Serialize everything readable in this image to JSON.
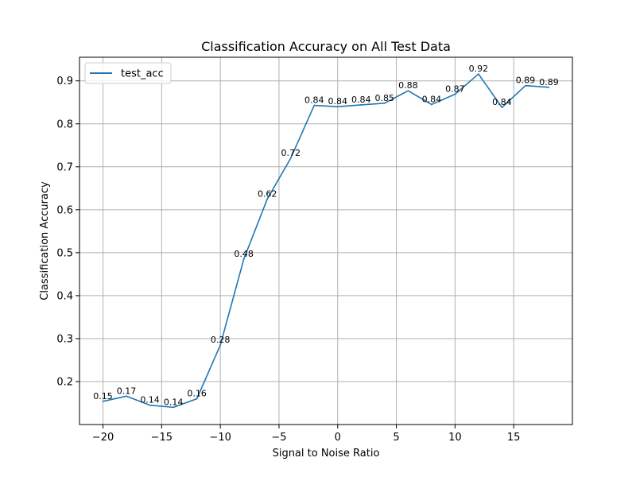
{
  "chart_data": {
    "type": "line",
    "title": "Classification Accuracy on All Test Data",
    "xlabel": "Signal to Noise Ratio",
    "ylabel": "Classification Accuracy",
    "xlim": [
      -22,
      20
    ],
    "ylim": [
      0.1,
      0.955
    ],
    "xticks": [
      -20,
      -15,
      -10,
      -5,
      0,
      5,
      10,
      15
    ],
    "xtick_labels": [
      "−20",
      "−15",
      "−10",
      "−5",
      "0",
      "5",
      "10",
      "15"
    ],
    "yticks": [
      0.2,
      0.3,
      0.4,
      0.5,
      0.6,
      0.7,
      0.8,
      0.9
    ],
    "ytick_labels": [
      "0.2",
      "0.3",
      "0.4",
      "0.5",
      "0.6",
      "0.7",
      "0.8",
      "0.9"
    ],
    "grid": true,
    "legend_position": "top-left",
    "series": [
      {
        "name": "test_acc",
        "color": "#1f77b4",
        "x": [
          -20,
          -18,
          -16,
          -14,
          -12,
          -10,
          -8,
          -6,
          -4,
          -2,
          0,
          2,
          4,
          6,
          8,
          10,
          12,
          14,
          16,
          18
        ],
        "y": [
          0.154,
          0.166,
          0.145,
          0.14,
          0.16,
          0.285,
          0.485,
          0.625,
          0.72,
          0.843,
          0.84,
          0.844,
          0.848,
          0.877,
          0.845,
          0.869,
          0.916,
          0.838,
          0.889,
          0.885
        ],
        "labels": [
          "0.15",
          "0.17",
          "0.14",
          "0.14",
          "0.16",
          "0.28",
          "0.48",
          "0.62",
          "0.72",
          "0.84",
          "0.84",
          "0.84",
          "0.85",
          "0.88",
          "0.84",
          "0.87",
          "0.92",
          "0.84",
          "0.89",
          "0.89"
        ]
      }
    ]
  }
}
